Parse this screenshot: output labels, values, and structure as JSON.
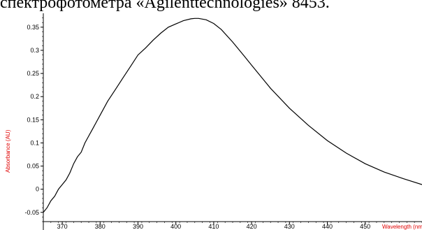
{
  "caption": "спектрофотометра «Agilenttechnologies» 8453.",
  "chart_data": {
    "type": "line",
    "title": "",
    "xlabel": "Wavelength (nm)",
    "ylabel": "Absorbance (AU)",
    "xlim": [
      365,
      465
    ],
    "ylim": [
      -0.07,
      0.38
    ],
    "x_ticks": [
      370,
      380,
      390,
      400,
      410,
      420,
      430,
      440,
      450
    ],
    "y_ticks": [
      -0.05,
      0,
      0.05,
      0.1,
      0.15,
      0.2,
      0.25,
      0.3,
      0.35
    ],
    "y_tick_labels": [
      "-0.05",
      "0",
      "0.05",
      "0.1",
      "0.15",
      "0.2",
      "0.25",
      "0.3",
      "0.35"
    ],
    "line_color": "#000000",
    "label_color": "#e00000",
    "grid": false,
    "series": [
      {
        "x": [
          365,
          366,
          367,
          368,
          369,
          370,
          371,
          372,
          373,
          374,
          375,
          376,
          377,
          378,
          379,
          380,
          382,
          384,
          386,
          388,
          390,
          392,
          394,
          396,
          398,
          400,
          402,
          404,
          405,
          406,
          408,
          410,
          412,
          415,
          418,
          420,
          425,
          430,
          435,
          440,
          445,
          450,
          455,
          460,
          465
        ],
        "y": [
          -0.05,
          -0.04,
          -0.025,
          -0.015,
          0.0,
          0.01,
          0.02,
          0.035,
          0.055,
          0.07,
          0.08,
          0.1,
          0.115,
          0.13,
          0.145,
          0.16,
          0.19,
          0.215,
          0.24,
          0.265,
          0.29,
          0.305,
          0.322,
          0.337,
          0.35,
          0.357,
          0.364,
          0.368,
          0.369,
          0.369,
          0.366,
          0.358,
          0.345,
          0.318,
          0.288,
          0.268,
          0.218,
          0.175,
          0.138,
          0.105,
          0.078,
          0.055,
          0.037,
          0.023,
          0.01
        ]
      }
    ]
  }
}
